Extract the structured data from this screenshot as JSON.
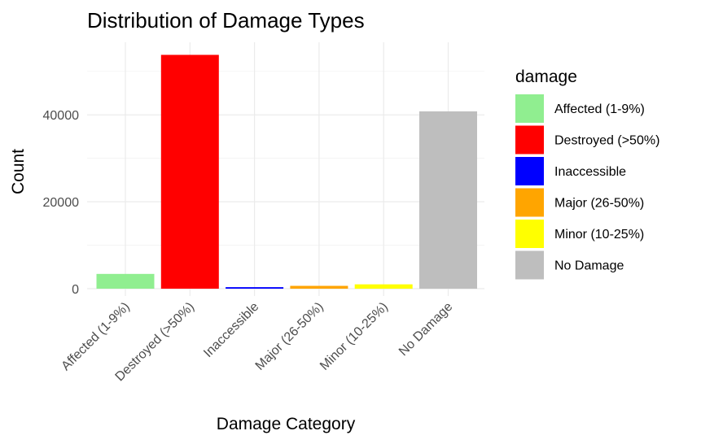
{
  "chart_data": {
    "type": "bar",
    "title": "Distribution of Damage Types",
    "xlabel": "Damage Category",
    "ylabel": "Count",
    "categories": [
      "Affected (1-9%)",
      "Destroyed (>50%)",
      "Inaccessible",
      "Major (26-50%)",
      "Minor (10-25%)",
      "No Damage"
    ],
    "values": [
      3400,
      53800,
      350,
      650,
      1000,
      40800
    ],
    "colors": [
      "#90EE90",
      "#FF0000",
      "#0000FF",
      "#FFA500",
      "#FFFF00",
      "#BEBEBE"
    ],
    "ylim": [
      0,
      53800
    ],
    "yticks": [
      0,
      20000,
      40000
    ],
    "grid": true,
    "legend": {
      "title": "damage",
      "position": "right",
      "entries": [
        "Affected (1-9%)",
        "Destroyed (>50%)",
        "Inaccessible",
        "Major (26-50%)",
        "Minor (10-25%)",
        "No Damage"
      ]
    }
  }
}
